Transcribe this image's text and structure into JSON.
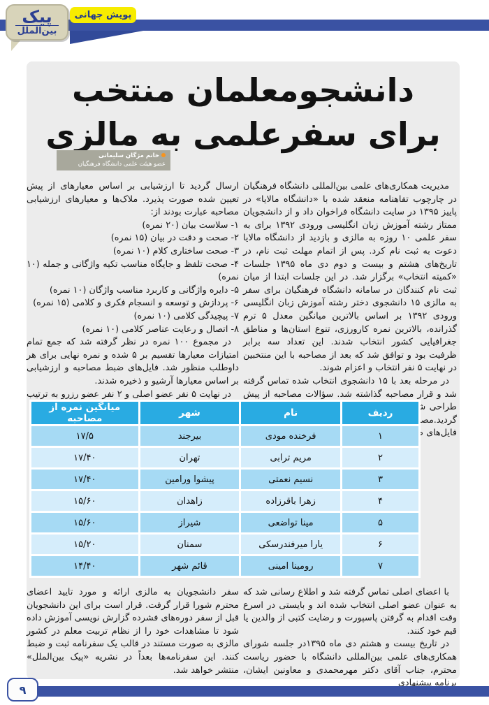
{
  "header": {
    "logo_line1": "پیک",
    "logo_line2": "بین‌الملل",
    "section_tag": "پویش جهانی"
  },
  "article": {
    "title_line1": "دانشجومعلمان منتخب",
    "title_line2": "برای سفرعلمی به مالزی",
    "byline": {
      "name": "خانم مژگان سلیمانی",
      "role": "عضو هیئت علمی دانشگاه فرهنگیان"
    },
    "right_col_p1": "مدیریت همکاری‌های علمی بین‌المللی دانشگاه فرهنگیان در چارچوب تفاهنامه منعقد شده با «دانشگاه مالایا» در پاییز ۱۳۹۵ در سایت دانشگاه فراخوان داد و از دانشجویان ممتاز رشته آموزش زبان انگلیسی ورودی ۱۳۹۲ برای به سفر علمی ۱۰ روزه به مالزی و بازدید از دانشگاه مالایا دعوت به ثبت نام کرد. پس از اتمام مهلت ثبت نام، در تاریخ‌های هشتم و بیست و دوم دی ماه ۱۳۹۵ جلسات «کمیته انتخاب» برگزار شد. در این جلسات ابتدا از میان ثبت نام کنندگان در سامانه دانشگاه فرهنگیان برای سفر به مالزی ۱۵ دانشجوی دختر رشته آموزش زبان انگلیسی ورودی ۱۳۹۲ بر اساس بالاترین میانگین معدل ۵ ترم گذرانده، بالاترین نمره کارورزی، تنوع استان‌ها و مناطق جغرافیایی کشور انتخاب شدند. این تعداد سه برابر ظرفیت بود و توافق شد که بعد از مصاحبه با این منتخبین در نهایت ۵ نفر انتخاب و اعزام شوند.",
    "right_col_p2": "در مرحله بعد با ۱۵ دانشجوی انتخاب شده تماس گرفته شد و قرار مصاحبه گذاشته شد. سؤالات مصاحبه از پیش طراحی شد و معیار ارزشیابی مصاحبه شوندگان مشخص گردید.مصاحبه به صورت تلفنی انجام و ضبط شد. فایل‌های ضبط شده به اعضای انجمن",
    "left_col_intro": "ارسال گردید تا ارزشیابی بر اساس معیارهای از پیش تعیین شده صورت پذیرد. ملاک‌ها و معیارهای ارزشیابی مصاحبه عبارت بودند از:",
    "criteria": [
      "۱- سلاست بیان (۲۰ نمره)",
      "۲- صحت و دقت در بیان (۱۵ نمره)",
      "۳- صحت ساختاری کلام (۱۰ نمره)",
      "۴- صحت تلفظ و جایگاه مناسب تکیه واژگانی و جمله (۱۰ نمره)",
      "۵- دایره واژگانی و کاربرد مناسب واژگان (۱۰ نمره)",
      "۶- پردازش و توسعه و انسجام فکری و کلامی (۱۵ نمره)",
      "۷- پیچیدگی کلامی (۱۰ نمره)",
      "۸- اتصال و رعایت عناصر کلامی (۱۰ نمره)"
    ],
    "left_col_p2": "در مجموع ۱۰۰ نمره در نظر گرفته شد که جمع تمام امتیازات معیارها تقسیم بر ۵ شده و نمره نهایی برای هر داوطلب منظور شد. فایل‌های ضبط مصاحبه و ارزشیابی بر اساس معیارها آرشیو و ذخیره شدند.",
    "left_col_p3": "در نهایت ۵ نفر عضو اصلی و ۲ نفر عضو رزرو به ترتیب زیر انتخاب و معرفی شدند.",
    "bottom_right_p1": "با اعضای اصلی تماس گرفته شد و اطلاع رسانی شد که به عنوان عضو اصلی انتخاب شده اند و بایستی در اسرع وقت اقدام به گرفتن پاسپورت و رضایت کتبی از والدین یا قیم خود کنند.",
    "bottom_right_p2": "در تاریخ بیست و هشتم دی ماه ۱۳۹۵در جلسه شورای همکاری‌های علمی بین‌المللی دانشگاه با حضور ریاست محترم، جناب آقای دکتر مهرمحمدی و معاونین ایشان، برنامه پیشنهادی",
    "bottom_left_p1": "سفر دانشجویان به مالزی ارائه و مورد تایید اعضای محترم شورا قرار گرفت. قرار است برای این دانشجویان قبل از سفر دوره‌های فشرده گزارش نویسی آموزش داده شود تا مشاهدات خود را از نظام تربیت معلم در کشور مالزی به صورت مستند در قالب یک سفرنامه ثبت و ضبط کنند. این سفرنامه‌ها بعداً در نشریه «پیک بین‌الملل» منتشر خواهد شد."
  },
  "table": {
    "headers": [
      "ردیف",
      "نام",
      "شهر",
      "میانگین نمره از مصاحبه"
    ],
    "rows": [
      [
        "۱",
        "فرخنده مودی",
        "بیرجند",
        "۱۷/۵"
      ],
      [
        "۲",
        "مریم ترابی",
        "تهران",
        "۱۷/۴۰"
      ],
      [
        "۳",
        "نسیم نعمتی",
        "پیشوا ورامین",
        "۱۷/۴۰"
      ],
      [
        "۴",
        "زهرا باقرزاده",
        "زاهدان",
        "۱۵/۶۰"
      ],
      [
        "۵",
        "مینا تواضعی",
        "شیراز",
        "۱۵/۶۰"
      ],
      [
        "۶",
        "یارا میرفندرسکی",
        "سمنان",
        "۱۵/۲۰"
      ],
      [
        "۷",
        "رومینا امینی",
        "قائم شهر",
        "۱۴/۴۰"
      ]
    ]
  },
  "footer": {
    "page_number": "۹"
  },
  "colors": {
    "bar_blue": "#3a52a3",
    "tag_yellow": "#f7ec00",
    "panel_gray": "#ececec",
    "byline_gray": "#a8a89c",
    "byline_bullet_orange": "#f7941e",
    "table_header_blue": "#29abe2",
    "table_row_medium": "#a6daf4",
    "table_row_light": "#d5edfb"
  }
}
